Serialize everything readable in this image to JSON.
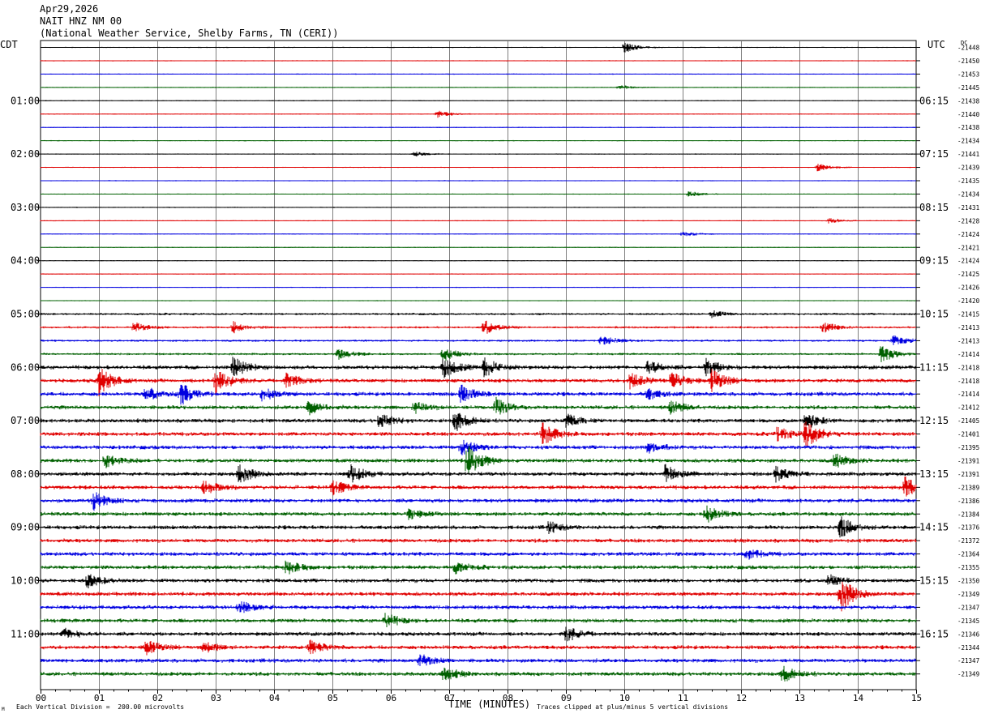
{
  "header": {
    "date": "Apr29,2026",
    "station": "NAIT HNZ NM 00",
    "network": "(National Weather Service, Shelby Farms, TN (CERI))"
  },
  "labels": {
    "left_tz": "CDT",
    "right_tz": "UTC",
    "dc": "DC",
    "x_title": "TIME (MINUTES)",
    "scale_note": "Each Vertical Division =  200.00 microvolts",
    "clip_note": "Traces clipped at plus/minus 5 vertical divisions",
    "corner_mark": "M"
  },
  "colors": {
    "trace_cycle": [
      "#000000",
      "#e00000",
      "#0000e0",
      "#006000"
    ],
    "grid": "#7f7f7f"
  },
  "chart_data": {
    "type": "line",
    "x_ticks": [
      "00",
      "01",
      "02",
      "03",
      "04",
      "05",
      "06",
      "07",
      "08",
      "09",
      "10",
      "11",
      "12",
      "13",
      "14",
      "15"
    ],
    "xlim": [
      0,
      15
    ],
    "left_time_labels": [
      {
        "row": 4,
        "label": "01:00"
      },
      {
        "row": 8,
        "label": "02:00"
      },
      {
        "row": 12,
        "label": "03:00"
      },
      {
        "row": 16,
        "label": "04:00"
      },
      {
        "row": 20,
        "label": "05:00"
      },
      {
        "row": 24,
        "label": "06:00"
      },
      {
        "row": 28,
        "label": "07:00"
      },
      {
        "row": 32,
        "label": "08:00"
      },
      {
        "row": 36,
        "label": "09:00"
      },
      {
        "row": 40,
        "label": "10:00"
      },
      {
        "row": 44,
        "label": "11:00"
      }
    ],
    "right_time_labels": [
      {
        "row": 4,
        "label": "06:15"
      },
      {
        "row": 8,
        "label": "07:15"
      },
      {
        "row": 12,
        "label": "08:15"
      },
      {
        "row": 16,
        "label": "09:15"
      },
      {
        "row": 20,
        "label": "10:15"
      },
      {
        "row": 24,
        "label": "11:15"
      },
      {
        "row": 28,
        "label": "12:15"
      },
      {
        "row": 32,
        "label": "13:15"
      },
      {
        "row": 36,
        "label": "14:15"
      },
      {
        "row": 40,
        "label": "15:15"
      },
      {
        "row": 44,
        "label": "16:15"
      }
    ],
    "dc_offsets": [
      "-21448",
      "-21450",
      "-21453",
      "-21445",
      "-21438",
      "-21440",
      "-21438",
      "-21434",
      "-21441",
      "-21439",
      "-21435",
      "-21434",
      "-21431",
      "-21428",
      "-21424",
      "-21421",
      "-21424",
      "-21425",
      "-21426",
      "-21420",
      "-21415",
      "-21413",
      "-21413",
      "-21414",
      "-21418",
      "-21418",
      "-21414",
      "-21412",
      "-21405",
      "-21401",
      "-21395",
      "-21391",
      "-21391",
      "-21389",
      "-21386",
      "-21384",
      "-21376",
      "-21372",
      "-21364",
      "-21355",
      "-21350",
      "-21349",
      "-21347",
      "-21345",
      "-21346",
      "-21344",
      "-21347",
      "-21349"
    ],
    "trace_activity": [
      1,
      1,
      1,
      1,
      1,
      1,
      1,
      1,
      1,
      1,
      1,
      1,
      1,
      1,
      1,
      1,
      1,
      1,
      1,
      1,
      2,
      2,
      2,
      2,
      3,
      3,
      3,
      3,
      3,
      3,
      3,
      3,
      3,
      3,
      3,
      3,
      3,
      3,
      3,
      3,
      3,
      3,
      3,
      3,
      3,
      3,
      3,
      3
    ],
    "events": [
      {
        "row": 0,
        "minute": 10.0,
        "amp": 3
      },
      {
        "row": 3,
        "minute": 9.9,
        "amp": 1.5
      },
      {
        "row": 5,
        "minute": 6.8,
        "amp": 2
      },
      {
        "row": 8,
        "minute": 6.4,
        "amp": 1.5
      },
      {
        "row": 9,
        "minute": 13.3,
        "amp": 2.5
      },
      {
        "row": 11,
        "minute": 11.1,
        "amp": 1.5
      },
      {
        "row": 13,
        "minute": 13.5,
        "amp": 1.5
      },
      {
        "row": 14,
        "minute": 11.0,
        "amp": 1.5
      },
      {
        "row": 20,
        "minute": 11.5,
        "amp": 2
      },
      {
        "row": 21,
        "minute": 1.6,
        "amp": 3
      },
      {
        "row": 21,
        "minute": 3.3,
        "amp": 3
      },
      {
        "row": 21,
        "minute": 7.6,
        "amp": 4
      },
      {
        "row": 21,
        "minute": 13.4,
        "amp": 3
      },
      {
        "row": 22,
        "minute": 9.6,
        "amp": 3
      },
      {
        "row": 22,
        "minute": 14.6,
        "amp": 3
      },
      {
        "row": 23,
        "minute": 5.1,
        "amp": 3
      },
      {
        "row": 23,
        "minute": 6.9,
        "amp": 4
      },
      {
        "row": 23,
        "minute": 14.4,
        "amp": 5
      },
      {
        "row": 24,
        "minute": 3.3,
        "amp": 6
      },
      {
        "row": 24,
        "minute": 6.9,
        "amp": 6
      },
      {
        "row": 24,
        "minute": 7.6,
        "amp": 5
      },
      {
        "row": 24,
        "minute": 10.4,
        "amp": 4
      },
      {
        "row": 24,
        "minute": 11.4,
        "amp": 5
      },
      {
        "row": 25,
        "minute": 1.0,
        "amp": 8
      },
      {
        "row": 25,
        "minute": 3.0,
        "amp": 7
      },
      {
        "row": 25,
        "minute": 4.2,
        "amp": 4
      },
      {
        "row": 25,
        "minute": 10.1,
        "amp": 5
      },
      {
        "row": 25,
        "minute": 10.8,
        "amp": 5
      },
      {
        "row": 25,
        "minute": 11.5,
        "amp": 6
      },
      {
        "row": 26,
        "minute": 1.8,
        "amp": 4
      },
      {
        "row": 26,
        "minute": 2.4,
        "amp": 6
      },
      {
        "row": 26,
        "minute": 3.8,
        "amp": 4
      },
      {
        "row": 26,
        "minute": 7.2,
        "amp": 5
      },
      {
        "row": 26,
        "minute": 10.4,
        "amp": 3
      },
      {
        "row": 27,
        "minute": 4.6,
        "amp": 4
      },
      {
        "row": 27,
        "minute": 6.4,
        "amp": 3
      },
      {
        "row": 27,
        "minute": 7.8,
        "amp": 5
      },
      {
        "row": 27,
        "minute": 10.8,
        "amp": 4
      },
      {
        "row": 28,
        "minute": 5.8,
        "amp": 4
      },
      {
        "row": 28,
        "minute": 7.1,
        "amp": 6
      },
      {
        "row": 28,
        "minute": 9.0,
        "amp": 4
      },
      {
        "row": 28,
        "minute": 13.1,
        "amp": 5
      },
      {
        "row": 29,
        "minute": 8.6,
        "amp": 6
      },
      {
        "row": 29,
        "minute": 13.1,
        "amp": 8
      },
      {
        "row": 29,
        "minute": 12.6,
        "amp": 4
      },
      {
        "row": 30,
        "minute": 7.2,
        "amp": 5
      },
      {
        "row": 30,
        "minute": 10.4,
        "amp": 3
      },
      {
        "row": 31,
        "minute": 7.3,
        "amp": 10
      },
      {
        "row": 31,
        "minute": 1.1,
        "amp": 4
      },
      {
        "row": 31,
        "minute": 13.6,
        "amp": 4
      },
      {
        "row": 32,
        "minute": 3.4,
        "amp": 5
      },
      {
        "row": 32,
        "minute": 5.3,
        "amp": 5
      },
      {
        "row": 32,
        "minute": 10.7,
        "amp": 5
      },
      {
        "row": 32,
        "minute": 12.6,
        "amp": 4
      },
      {
        "row": 33,
        "minute": 2.8,
        "amp": 4
      },
      {
        "row": 33,
        "minute": 5.0,
        "amp": 4
      },
      {
        "row": 33,
        "minute": 14.8,
        "amp": 6
      },
      {
        "row": 34,
        "minute": 0.9,
        "amp": 5
      },
      {
        "row": 35,
        "minute": 6.3,
        "amp": 3
      },
      {
        "row": 35,
        "minute": 11.4,
        "amp": 5
      },
      {
        "row": 36,
        "minute": 8.7,
        "amp": 3
      },
      {
        "row": 36,
        "minute": 13.7,
        "amp": 6
      },
      {
        "row": 38,
        "minute": 12.1,
        "amp": 3
      },
      {
        "row": 39,
        "minute": 4.2,
        "amp": 4
      },
      {
        "row": 39,
        "minute": 7.1,
        "amp": 3
      },
      {
        "row": 40,
        "minute": 0.8,
        "amp": 4
      },
      {
        "row": 40,
        "minute": 13.5,
        "amp": 3
      },
      {
        "row": 41,
        "minute": 13.7,
        "amp": 10
      },
      {
        "row": 42,
        "minute": 3.4,
        "amp": 4
      },
      {
        "row": 43,
        "minute": 5.9,
        "amp": 4
      },
      {
        "row": 44,
        "minute": 9.0,
        "amp": 4
      },
      {
        "row": 44,
        "minute": 0.4,
        "amp": 3
      },
      {
        "row": 45,
        "minute": 1.8,
        "amp": 4
      },
      {
        "row": 45,
        "minute": 4.6,
        "amp": 4
      },
      {
        "row": 45,
        "minute": 2.8,
        "amp": 3
      },
      {
        "row": 46,
        "minute": 6.5,
        "amp": 4
      },
      {
        "row": 47,
        "minute": 12.7,
        "amp": 5
      },
      {
        "row": 47,
        "minute": 6.9,
        "amp": 4
      }
    ]
  }
}
